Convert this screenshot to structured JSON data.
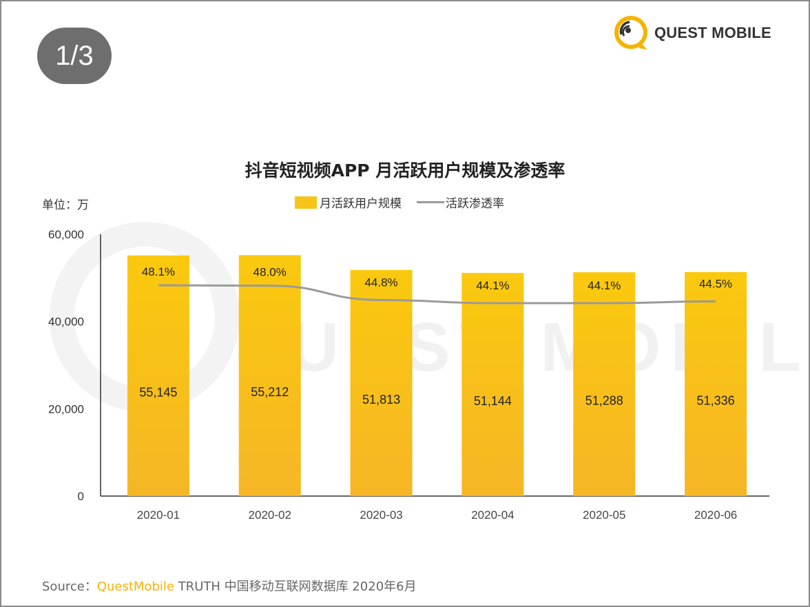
{
  "pager": {
    "label": "1/3"
  },
  "logo": {
    "text": "QUEST MOBILE",
    "color": "#f5b400"
  },
  "watermark": {
    "text": "QUESTMOBILE"
  },
  "header": {
    "title": "抖音短视频APP 月活跃用户规模及渗透率",
    "unit": "单位：万"
  },
  "legend": {
    "bar_label": "月活跃用户规模",
    "line_label": "活跃渗透率"
  },
  "source": {
    "prefix": "Source：",
    "brand": "QuestMobile",
    "rest": " TRUTH 中国移动互联网数据库 2020年6月"
  },
  "chart_data": {
    "type": "bar",
    "title": "抖音短视频APP 月活跃用户规模及渗透率",
    "categories": [
      "2020-01",
      "2020-02",
      "2020-03",
      "2020-04",
      "2020-05",
      "2020-06"
    ],
    "series": [
      {
        "name": "月活跃用户规模",
        "type": "bar",
        "values": [
          55145,
          55212,
          51813,
          51144,
          51288,
          51336
        ],
        "labels": [
          "55,145",
          "55,212",
          "51,813",
          "51,144",
          "51,288",
          "51,336"
        ],
        "color": "#f7c51a"
      },
      {
        "name": "活跃渗透率",
        "type": "line",
        "values": [
          48.1,
          48.0,
          44.8,
          44.1,
          44.1,
          44.5
        ],
        "labels": [
          "48.1%",
          "48.0%",
          "44.8%",
          "44.1%",
          "44.1%",
          "44.5%"
        ],
        "color": "#9a9a9a"
      }
    ],
    "ylim": [
      0,
      60000
    ],
    "yticks": [
      0,
      20000,
      40000,
      60000
    ],
    "ytick_labels": [
      "0",
      "20,000",
      "40,000",
      "60,000"
    ],
    "grid": false,
    "legend_position": "top-center"
  }
}
